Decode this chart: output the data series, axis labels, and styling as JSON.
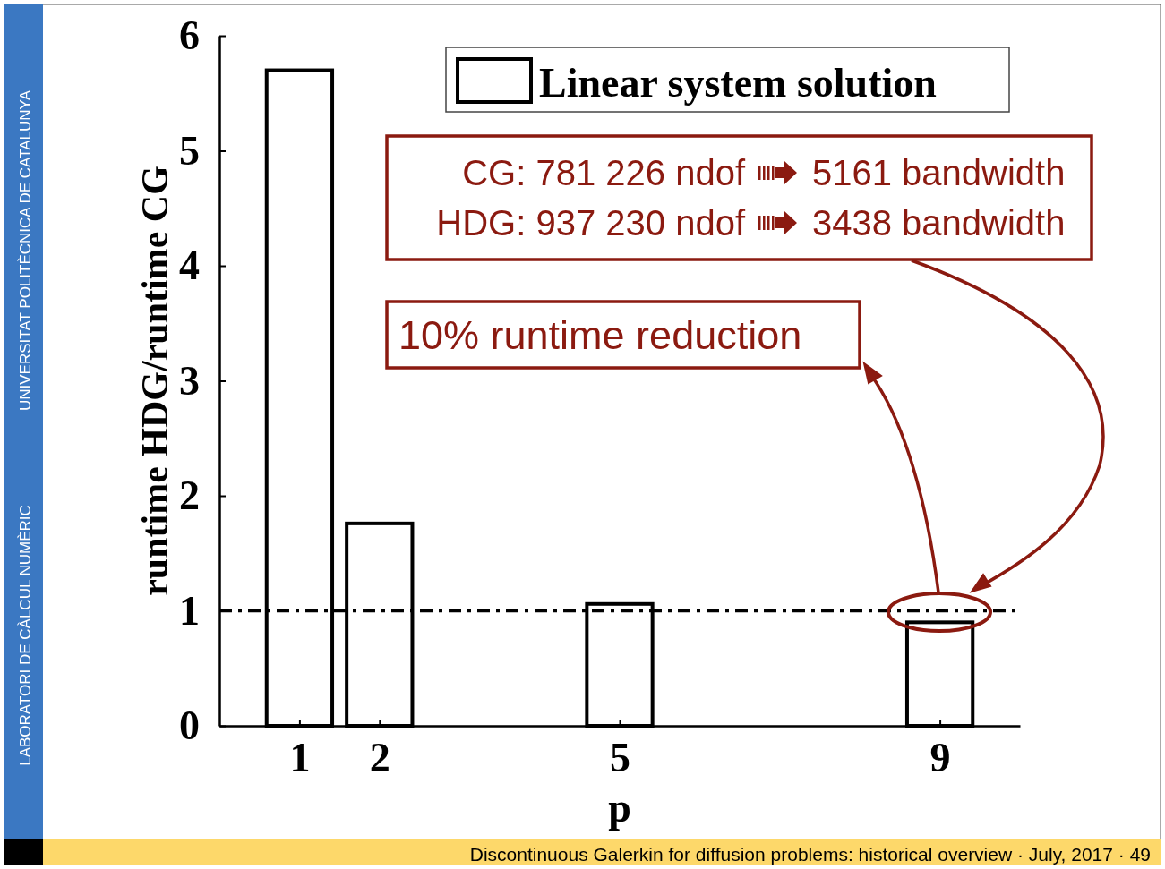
{
  "chart_data": {
    "type": "bar",
    "xlabel": "p",
    "ylabel": "runtime HDG/runtime CG",
    "x": [
      1,
      2,
      5,
      9
    ],
    "series": [
      {
        "name": "Linear system solution",
        "color": "#ffffff",
        "values": [
          5.7,
          1.76,
          1.06,
          0.9
        ]
      }
    ],
    "xlim": [
      0,
      10
    ],
    "xticks": [
      1,
      2,
      5,
      9
    ],
    "ylim": [
      0,
      6
    ],
    "yticks": [
      0,
      1,
      2,
      3,
      4,
      5,
      6
    ],
    "ref_lines": [
      {
        "axis": "y",
        "value": 1,
        "color": "#000000"
      }
    ],
    "legend": "top right",
    "annotations": [
      "CG: 781 226 ndof",
      "5161 bandwidth",
      "HDG: 937 230 ndof",
      "3438 bandwidth",
      "10% runtime reduction",
      "Discontinuous Galerkin for diffusion problems: historical overview · July, 2017 · 49",
      "UNIVERSITAT POLITÈCNICA DE CATALUNYA",
      "LABORATORI DE CÀLCUL NUMÈRIC"
    ]
  }
}
